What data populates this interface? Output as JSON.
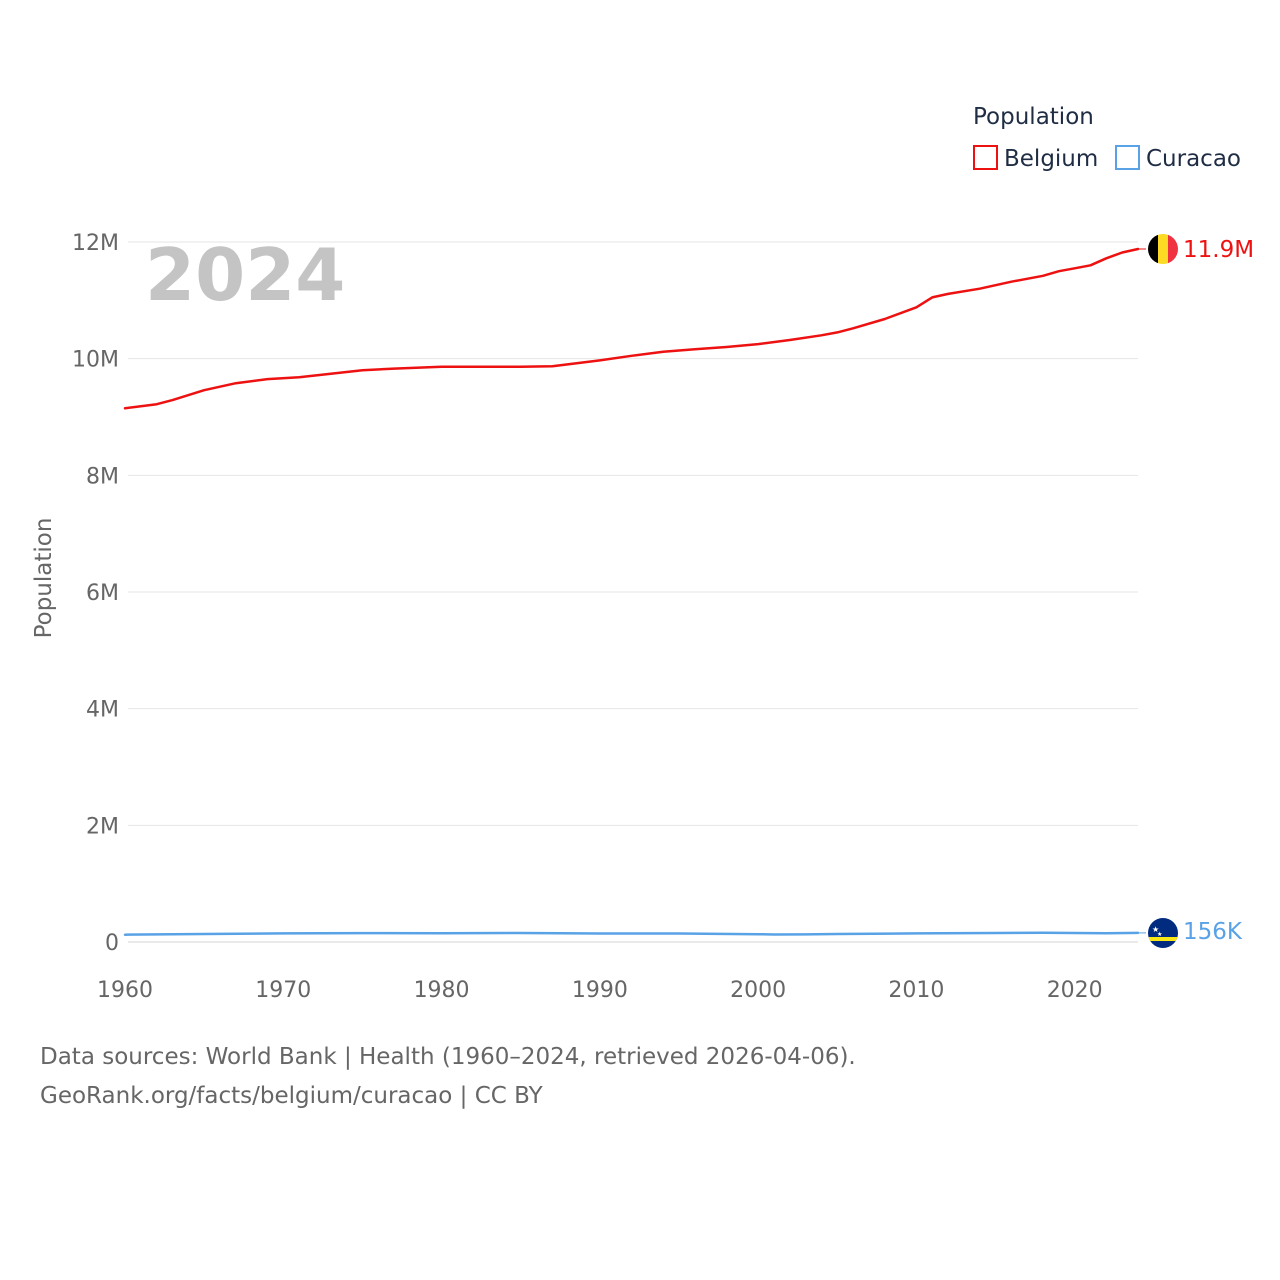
{
  "chart_data": {
    "type": "line",
    "ylabel": "Population",
    "xlabel": "",
    "year_overlay": "2024",
    "legend_title": "Population",
    "xlim": [
      1960,
      2024
    ],
    "ylim": [
      0,
      12000000
    ],
    "x_ticks": [
      {
        "value": 1960,
        "label": "1960"
      },
      {
        "value": 1970,
        "label": "1970"
      },
      {
        "value": 1980,
        "label": "1980"
      },
      {
        "value": 1990,
        "label": "1990"
      },
      {
        "value": 2000,
        "label": "2000"
      },
      {
        "value": 2010,
        "label": "2010"
      },
      {
        "value": 2020,
        "label": "2020"
      }
    ],
    "y_ticks": [
      {
        "value": 0,
        "label": "0"
      },
      {
        "value": 2000000,
        "label": "2M"
      },
      {
        "value": 4000000,
        "label": "4M"
      },
      {
        "value": 6000000,
        "label": "6M"
      },
      {
        "value": 8000000,
        "label": "8M"
      },
      {
        "value": 10000000,
        "label": "10M"
      },
      {
        "value": 12000000,
        "label": "12M"
      }
    ],
    "grid": true,
    "legend_position": "top-right",
    "series": [
      {
        "name": "Belgium",
        "color": "#ee1111",
        "end_label": "11.9M",
        "flag": "belgium-flag",
        "x": [
          1960,
          1962,
          1963,
          1965,
          1967,
          1969,
          1971,
          1973,
          1975,
          1977,
          1980,
          1983,
          1985,
          1987,
          1990,
          1992,
          1994,
          1996,
          1998,
          2000,
          2002,
          2004,
          2005,
          2006,
          2008,
          2010,
          2011,
          2012,
          2014,
          2016,
          2018,
          2019,
          2020,
          2021,
          2022,
          2023,
          2024
        ],
        "y": [
          9150000,
          9220000,
          9290000,
          9460000,
          9580000,
          9650000,
          9680000,
          9740000,
          9800000,
          9830000,
          9860000,
          9860000,
          9860000,
          9870000,
          9970000,
          10050000,
          10120000,
          10160000,
          10200000,
          10250000,
          10320000,
          10400000,
          10450000,
          10520000,
          10680000,
          10880000,
          11050000,
          11110000,
          11200000,
          11320000,
          11420000,
          11500000,
          11550000,
          11600000,
          11720000,
          11820000,
          11880000
        ]
      },
      {
        "name": "Curacao",
        "color": "#5aa2e6",
        "end_label": "156K",
        "flag": "curacao-flag",
        "x": [
          1960,
          1965,
          1970,
          1975,
          1980,
          1985,
          1990,
          1995,
          2000,
          2001,
          2003,
          2005,
          2010,
          2015,
          2018,
          2020,
          2022,
          2024
        ],
        "y": [
          125000,
          138000,
          148000,
          152000,
          150000,
          155000,
          146000,
          146000,
          133000,
          129000,
          130000,
          137000,
          148000,
          155000,
          160000,
          155000,
          150000,
          156000
        ]
      }
    ]
  },
  "footer": {
    "line1": "Data sources: World Bank | Health (1960–2024, retrieved 2026-04-06).",
    "line2": "GeoRank.org/facts/belgium/curacao | CC BY"
  }
}
